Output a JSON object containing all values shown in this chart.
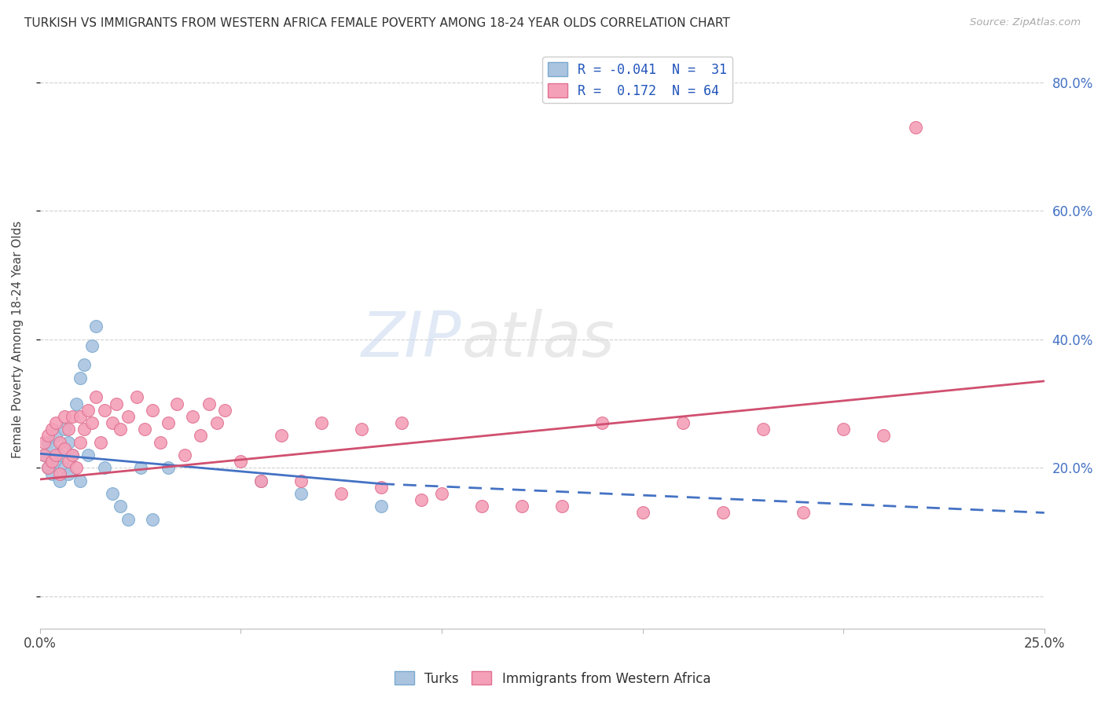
{
  "title": "TURKISH VS IMMIGRANTS FROM WESTERN AFRICA FEMALE POVERTY AMONG 18-24 YEAR OLDS CORRELATION CHART",
  "source": "Source: ZipAtlas.com",
  "ylabel": "Female Poverty Among 18-24 Year Olds",
  "xlim": [
    0.0,
    0.25
  ],
  "ylim": [
    -0.05,
    0.85
  ],
  "right_yticklabels": [
    "20.0%",
    "40.0%",
    "60.0%",
    "80.0%"
  ],
  "right_yticks": [
    0.2,
    0.4,
    0.6,
    0.8
  ],
  "turks_color": "#aac4e0",
  "turks_edge": "#7aaad0",
  "wa_color": "#f4a0b8",
  "wa_edge": "#e07090",
  "trend_turks_color": "#4472c4",
  "trend_wa_color": "#d05070",
  "background_color": "#ffffff",
  "grid_color": "#d0d0d0",
  "turks_x": [
    0.001,
    0.002,
    0.002,
    0.003,
    0.003,
    0.004,
    0.004,
    0.005,
    0.005,
    0.006,
    0.006,
    0.007,
    0.007,
    0.008,
    0.009,
    0.01,
    0.01,
    0.011,
    0.012,
    0.013,
    0.014,
    0.016,
    0.018,
    0.02,
    0.022,
    0.025,
    0.028,
    0.032,
    0.055,
    0.065,
    0.085
  ],
  "turks_y": [
    0.22,
    0.2,
    0.24,
    0.19,
    0.23,
    0.21,
    0.25,
    0.22,
    0.18,
    0.26,
    0.2,
    0.24,
    0.19,
    0.22,
    0.3,
    0.34,
    0.18,
    0.36,
    0.22,
    0.39,
    0.42,
    0.2,
    0.16,
    0.14,
    0.12,
    0.2,
    0.12,
    0.2,
    0.18,
    0.16,
    0.14
  ],
  "wa_x": [
    0.001,
    0.001,
    0.002,
    0.002,
    0.003,
    0.003,
    0.004,
    0.004,
    0.005,
    0.005,
    0.006,
    0.006,
    0.007,
    0.007,
    0.008,
    0.008,
    0.009,
    0.01,
    0.01,
    0.011,
    0.012,
    0.013,
    0.014,
    0.015,
    0.016,
    0.018,
    0.019,
    0.02,
    0.022,
    0.024,
    0.026,
    0.028,
    0.03,
    0.032,
    0.034,
    0.036,
    0.038,
    0.04,
    0.042,
    0.044,
    0.046,
    0.05,
    0.055,
    0.06,
    0.065,
    0.07,
    0.075,
    0.08,
    0.085,
    0.09,
    0.095,
    0.1,
    0.11,
    0.12,
    0.13,
    0.14,
    0.15,
    0.16,
    0.17,
    0.18,
    0.19,
    0.2,
    0.21,
    0.218
  ],
  "wa_y": [
    0.22,
    0.24,
    0.2,
    0.25,
    0.21,
    0.26,
    0.22,
    0.27,
    0.19,
    0.24,
    0.23,
    0.28,
    0.21,
    0.26,
    0.22,
    0.28,
    0.2,
    0.24,
    0.28,
    0.26,
    0.29,
    0.27,
    0.31,
    0.24,
    0.29,
    0.27,
    0.3,
    0.26,
    0.28,
    0.31,
    0.26,
    0.29,
    0.24,
    0.27,
    0.3,
    0.22,
    0.28,
    0.25,
    0.3,
    0.27,
    0.29,
    0.21,
    0.18,
    0.25,
    0.18,
    0.27,
    0.16,
    0.26,
    0.17,
    0.27,
    0.15,
    0.16,
    0.14,
    0.14,
    0.14,
    0.27,
    0.13,
    0.27,
    0.13,
    0.26,
    0.13,
    0.26,
    0.25,
    0.73
  ],
  "trend_blue_x0": 0.0,
  "trend_blue_y0": 0.222,
  "trend_blue_x1": 0.085,
  "trend_blue_y1": 0.175,
  "trend_blue_dash_x0": 0.085,
  "trend_blue_dash_y0": 0.175,
  "trend_blue_dash_x1": 0.25,
  "trend_blue_dash_y1": 0.13,
  "trend_pink_x0": 0.0,
  "trend_pink_y0": 0.182,
  "trend_pink_x1": 0.25,
  "trend_pink_y1": 0.335
}
